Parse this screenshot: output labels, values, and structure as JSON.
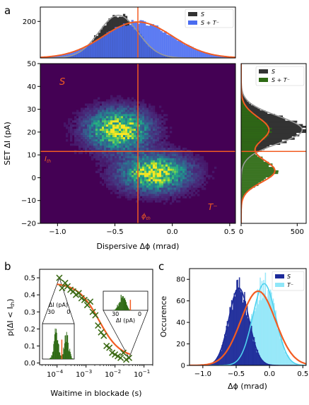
{
  "panel_letters": [
    "a",
    "b",
    "c"
  ],
  "chart_data": [
    {
      "id": "a-top-histogram",
      "type": "bar",
      "xlim": [
        -1.15,
        0.55
      ],
      "ylim": [
        0,
        280
      ],
      "ytick_labels": [
        "200"
      ],
      "legend": {
        "placement": "top-right",
        "entries": [
          "S",
          "S + T⁻"
        ]
      },
      "colors": {
        "S": "#333333",
        "S + T⁻": "#4a6cf0",
        "fit": "#f25c22",
        "fit_S": "#999999",
        "threshold": "#f25c22"
      },
      "threshold_x": -0.3,
      "fit_S": {
        "mu": -0.47,
        "sigma": 0.17,
        "peak": 235
      },
      "fit_combined": {
        "mu": -0.3,
        "sigma": 0.3,
        "peak": 198
      }
    },
    {
      "id": "a-heatmap",
      "type": "heatmap",
      "xlabel": "Dispersive Δϕ (mrad)",
      "ylabel": "SET ΔI (pA)",
      "xlim": [
        -1.15,
        0.55
      ],
      "ylim": [
        -20,
        50
      ],
      "xticks": [
        -1.0,
        -0.5,
        0.0,
        0.5
      ],
      "xtick_labels": [
        "−1.0",
        "−0.5",
        "0.0",
        "0.5"
      ],
      "yticks": [
        -20,
        -10,
        0,
        10,
        20,
        30,
        40,
        50
      ],
      "ytick_labels": [
        "−20",
        "−10",
        "0",
        "10",
        "20",
        "30",
        "40",
        "50"
      ],
      "threshold_x": -0.3,
      "threshold_y": 11.5,
      "annotations": {
        "S": "S",
        "T": "T⁻",
        "I_th": "I",
        "I_th_sub": "th",
        "phi_th": "ϕ",
        "phi_th_sub": "th"
      },
      "clusters": [
        {
          "name": "S",
          "x": -0.47,
          "y": 21,
          "sx": 0.17,
          "sy": 5.5
        },
        {
          "name": "T⁻",
          "x": -0.15,
          "y": 2,
          "sx": 0.19,
          "sy": 5
        }
      ]
    },
    {
      "id": "a-right-histogram",
      "type": "bar",
      "orientation": "horizontal",
      "xlim": [
        0,
        580
      ],
      "xticks": [
        0,
        500
      ],
      "xtick_labels": [
        "0",
        "500"
      ],
      "ylim": [
        -20,
        50
      ],
      "legend": {
        "placement": "top-right",
        "entries": [
          "S",
          "S + T⁻"
        ]
      },
      "colors": {
        "S": "#333333",
        "S + T⁻": "#2e6a14",
        "fit": "#f25c22",
        "fit_S": "#999999"
      },
      "threshold_y": 11.5,
      "fit_S": {
        "mu": 21,
        "sigma": 6,
        "peak": 545
      },
      "fit_combined": [
        {
          "mu": 21,
          "sigma": 5.5,
          "peak": 248
        },
        {
          "mu": 3,
          "sigma": 5,
          "peak": 300
        }
      ]
    },
    {
      "id": "b",
      "type": "scatter",
      "xlabel": "Waitime in blockade (s)",
      "ylabel": "p(ΔI < I",
      "ylabel_sub": "th",
      "ylabel_close": ")",
      "xscale": "log",
      "xlim": [
        2.5e-05,
        0.2
      ],
      "ylim": [
        -0.01,
        0.55
      ],
      "xticks": [
        0.0001,
        0.001,
        0.01,
        0.1
      ],
      "xtick_labels": [
        "10",
        "10",
        "10",
        "10"
      ],
      "xtick_exps": [
        "−4",
        "−3",
        "−2",
        "−1"
      ],
      "yticks": [
        0.0,
        0.1,
        0.2,
        0.3,
        0.4,
        0.5
      ],
      "ytick_labels": [
        "0.0",
        "0.1",
        "0.2",
        "0.3",
        "0.4",
        "0.5"
      ],
      "x": [
        0.00012,
        0.00015,
        0.00019,
        0.00023,
        0.00029,
        0.00036,
        0.00045,
        0.00056,
        0.0007,
        0.00088,
        0.0011,
        0.0014,
        0.0017,
        0.0021,
        0.0026,
        0.0033,
        0.0041,
        0.0051,
        0.0064,
        0.008,
        0.01,
        0.0125,
        0.0156,
        0.0195,
        0.0244,
        0.0305
      ],
      "y": [
        0.5,
        0.44,
        0.47,
        0.45,
        0.43,
        0.42,
        0.4,
        0.41,
        0.38,
        0.37,
        0.34,
        0.36,
        0.3,
        0.28,
        0.22,
        0.18,
        0.16,
        0.1,
        0.09,
        0.06,
        0.05,
        0.04,
        0.03,
        0.06,
        0.02,
        0.03
      ],
      "fit": {
        "top": 0.47,
        "bottom": 0.03,
        "x0": 0.0028,
        "k": 1.2
      },
      "colors": {
        "points": "#3d6b16",
        "fit": "#f25c22"
      },
      "insets": [
        {
          "position": "left",
          "xlabel": "ΔI (pA)",
          "xtick_labels": [
            "30",
            "0"
          ],
          "peaks": [
            21,
            3
          ],
          "threshold": 11.5
        },
        {
          "position": "right",
          "xlabel": "ΔI (pA)",
          "xtick_labels": [
            "30",
            "0"
          ],
          "peaks": [
            21
          ],
          "threshold": 11.5
        }
      ]
    },
    {
      "id": "c",
      "type": "bar",
      "xlabel": "Δϕ (mrad)",
      "ylabel": "Occurence",
      "xlim": [
        -1.2,
        0.55
      ],
      "ylim": [
        0,
        90
      ],
      "xticks": [
        -1.0,
        -0.5,
        0.0,
        0.5
      ],
      "xtick_labels": [
        "−1.0",
        "−0.5",
        "0.0",
        "0.5"
      ],
      "yticks": [
        0,
        20,
        40,
        60,
        80
      ],
      "ytick_labels": [
        "0",
        "20",
        "40",
        "60",
        "80"
      ],
      "legend": {
        "placement": "top-right",
        "entries": [
          "S",
          "T⁻"
        ]
      },
      "series": [
        {
          "name": "S",
          "mu": -0.46,
          "sigma": 0.15,
          "peak": 72,
          "color": "#1c2a99",
          "fit_color": "#1c2a99"
        },
        {
          "name": "T⁻",
          "mu": -0.08,
          "sigma": 0.17,
          "peak": 76,
          "color": "#8fe6f8",
          "fit_color": "#4fd2ef"
        }
      ],
      "fit_combined": {
        "mu": -0.17,
        "sigma": 0.26,
        "peak": 69,
        "color": "#f25c22"
      }
    }
  ]
}
